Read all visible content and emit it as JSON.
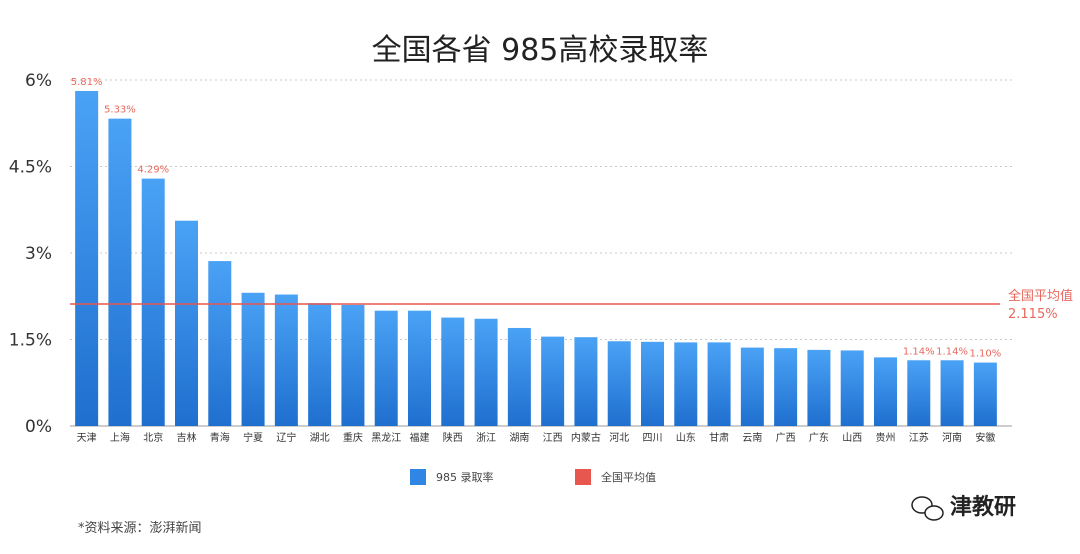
{
  "chart_data": {
    "type": "bar",
    "title": "全国各省 985高校录取率",
    "categories": [
      "天津",
      "上海",
      "北京",
      "吉林",
      "青海",
      "宁夏",
      "辽宁",
      "湖北",
      "重庆",
      "黑龙江",
      "福建",
      "陕西",
      "浙江",
      "湖南",
      "江西",
      "内蒙古",
      "河北",
      "四川",
      "山东",
      "甘肃",
      "云南",
      "广西",
      "广东",
      "山西",
      "贵州",
      "江苏",
      "河南",
      "安徽"
    ],
    "series": [
      {
        "name": "985 录取率",
        "color": "#2f86e3",
        "values": [
          5.81,
          5.33,
          4.29,
          3.56,
          2.86,
          2.31,
          2.28,
          2.13,
          2.1,
          2.0,
          2.0,
          1.88,
          1.86,
          1.7,
          1.55,
          1.54,
          1.47,
          1.46,
          1.45,
          1.45,
          1.36,
          1.35,
          1.32,
          1.31,
          1.19,
          1.14,
          1.14,
          1.1
        ]
      }
    ],
    "data_labels": [
      {
        "index": 0,
        "text": "5.81%"
      },
      {
        "index": 1,
        "text": "5.33%"
      },
      {
        "index": 2,
        "text": "4.29%"
      },
      {
        "index": 25,
        "text": "1.14%"
      },
      {
        "index": 26,
        "text": "1.14%"
      },
      {
        "index": 27,
        "text": "1.10%"
      }
    ],
    "average": {
      "name": "全国平均值",
      "value": 2.115,
      "label_line1": "全国平均值",
      "label_line2": "2.115%",
      "color": "#e8574f"
    },
    "yticks": [
      {
        "value": 0,
        "label": "0%"
      },
      {
        "value": 1.5,
        "label": "1.5%"
      },
      {
        "value": 3,
        "label": "3%"
      },
      {
        "value": 4.5,
        "label": "4.5%"
      },
      {
        "value": 6,
        "label": "6%"
      }
    ],
    "ylim": [
      0,
      6
    ],
    "grid": true,
    "legend_position": "bottom"
  },
  "footer": {
    "source": "*资料来源：澎湃新闻",
    "brand": "津教研"
  },
  "brand_icon": "wechat-icon"
}
